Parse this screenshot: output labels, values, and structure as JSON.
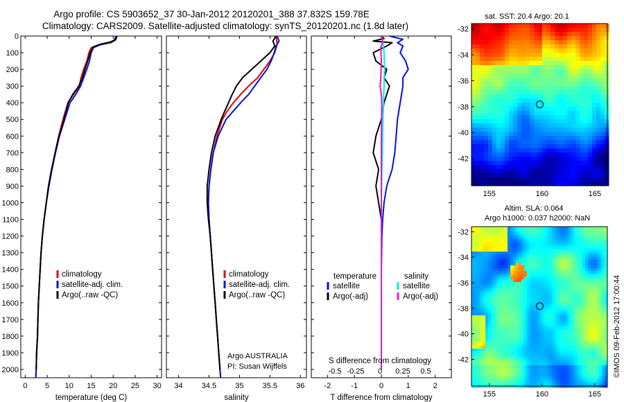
{
  "title_lines": [
    "Argo profile: CS 5903652_37 30-Jan-2012 20120201_388 37.832S 159.78E",
    "Climatology: CARS2009. Satellite-adjusted climatology: synTS_20120201.nc (1.8d later)"
  ],
  "colors": {
    "climatology": "#e00000",
    "satellite": "#0010e0",
    "argo": "#000000",
    "satellite_diff": "#00e8e8",
    "argo_diff": "#e020e0"
  },
  "chart_data": [
    {
      "type": "line",
      "xlabel": "temperature (deg C)",
      "xlim": [
        -1,
        31
      ],
      "xticks": [
        "0",
        "5",
        "10",
        "15",
        "20",
        "25",
        "30"
      ],
      "ylim": [
        0,
        2050
      ],
      "yticks": [
        "0",
        "100",
        "200",
        "300",
        "400",
        "500",
        "600",
        "700",
        "800",
        "900",
        "1000",
        "1100",
        "1200",
        "1300",
        "1400",
        "1500",
        "1600",
        "1700",
        "1800",
        "1900",
        "2000"
      ],
      "legend": [
        "climatology",
        "satellite-adj. clim.",
        "Argo(..raw -QC)"
      ],
      "series": [
        {
          "name": "climatology",
          "color": "climatology",
          "points": [
            [
              20.8,
              0
            ],
            [
              20.5,
              25
            ],
            [
              19.5,
              40
            ],
            [
              16.5,
              55
            ],
            [
              15,
              70
            ],
            [
              14.5,
              100
            ],
            [
              14,
              150
            ],
            [
              13.3,
              200
            ],
            [
              12.7,
              250
            ],
            [
              12.3,
              300
            ],
            [
              11,
              350
            ],
            [
              9.7,
              400
            ],
            [
              8.6,
              500
            ],
            [
              7.6,
              600
            ],
            [
              6.8,
              700
            ],
            [
              6,
              800
            ],
            [
              5.3,
              900
            ],
            [
              4.8,
              1000
            ],
            [
              4.3,
              1100
            ],
            [
              3.9,
              1200
            ],
            [
              3.6,
              1300
            ],
            [
              3.4,
              1400
            ],
            [
              3.2,
              1500
            ],
            [
              3,
              1600
            ],
            [
              2.9,
              1700
            ],
            [
              2.8,
              1800
            ],
            [
              2.6,
              1900
            ],
            [
              2.5,
              2000
            ],
            [
              2.4,
              2050
            ]
          ]
        },
        {
          "name": "satellite-adj. clim.",
          "color": "satellite",
          "points": [
            [
              20.6,
              0
            ],
            [
              20.3,
              25
            ],
            [
              19,
              40
            ],
            [
              16.8,
              55
            ],
            [
              15.5,
              70
            ],
            [
              15,
              100
            ],
            [
              14.6,
              150
            ],
            [
              14,
              200
            ],
            [
              13.3,
              250
            ],
            [
              12.6,
              300
            ],
            [
              11.5,
              350
            ],
            [
              10.2,
              400
            ],
            [
              9,
              500
            ],
            [
              7.8,
              600
            ],
            [
              6.9,
              700
            ],
            [
              6.1,
              800
            ],
            [
              5.4,
              900
            ],
            [
              4.8,
              1000
            ],
            [
              4.3,
              1100
            ],
            [
              3.9,
              1200
            ],
            [
              3.6,
              1300
            ],
            [
              3.4,
              1400
            ],
            [
              3.2,
              1500
            ],
            [
              3,
              1600
            ],
            [
              2.9,
              1700
            ],
            [
              2.8,
              1800
            ],
            [
              2.6,
              1900
            ],
            [
              2.5,
              2000
            ],
            [
              2.4,
              2050
            ]
          ]
        },
        {
          "name": "Argo(..raw -QC)",
          "color": "argo",
          "points": [
            [
              20.9,
              0
            ],
            [
              20.6,
              20
            ],
            [
              19.5,
              35
            ],
            [
              17,
              50
            ],
            [
              15.5,
              65
            ],
            [
              14.8,
              100
            ],
            [
              14.2,
              150
            ],
            [
              13.6,
              200
            ],
            [
              13,
              250
            ],
            [
              12.2,
              300
            ],
            [
              10.8,
              350
            ],
            [
              9.8,
              400
            ],
            [
              8.8,
              500
            ],
            [
              7.7,
              600
            ],
            [
              6.8,
              700
            ],
            [
              6,
              800
            ],
            [
              5.3,
              900
            ],
            [
              4.8,
              1000
            ],
            [
              4.3,
              1100
            ],
            [
              3.9,
              1200
            ],
            [
              3.6,
              1300
            ],
            [
              3.4,
              1400
            ],
            [
              3.2,
              1500
            ],
            [
              3,
              1600
            ],
            [
              2.9,
              1700
            ],
            [
              2.8,
              1800
            ],
            [
              2.6,
              1900
            ],
            [
              2.5,
              2000
            ]
          ]
        }
      ]
    },
    {
      "type": "line",
      "xlabel": "salinity",
      "xlim": [
        33.8,
        36.1
      ],
      "xticks": [
        "34",
        "34.5",
        "35",
        "35.5",
        "36"
      ],
      "ylim": [
        0,
        2050
      ],
      "legend": [
        "climatology",
        "satellite-adj. clim.",
        "Argo(..raw -QC)"
      ],
      "annotation": [
        "Argo AUSTRALIA",
        "PI: Susan Wijffels"
      ],
      "series": [
        {
          "name": "climatology",
          "color": "climatology",
          "points": [
            [
              35.6,
              0
            ],
            [
              35.62,
              50
            ],
            [
              35.58,
              100
            ],
            [
              35.5,
              150
            ],
            [
              35.4,
              200
            ],
            [
              35.3,
              250
            ],
            [
              35.15,
              300
            ],
            [
              35.02,
              350
            ],
            [
              34.9,
              400
            ],
            [
              34.8,
              450
            ],
            [
              34.72,
              500
            ],
            [
              34.63,
              600
            ],
            [
              34.57,
              700
            ],
            [
              34.53,
              800
            ],
            [
              34.5,
              900
            ],
            [
              34.49,
              1000
            ],
            [
              34.5,
              1100
            ],
            [
              34.52,
              1200
            ],
            [
              34.54,
              1300
            ],
            [
              34.56,
              1400
            ],
            [
              34.58,
              1500
            ],
            [
              34.6,
              1600
            ],
            [
              34.62,
              1700
            ],
            [
              34.64,
              1800
            ],
            [
              34.66,
              1900
            ],
            [
              34.68,
              2000
            ],
            [
              34.69,
              2050
            ]
          ]
        },
        {
          "name": "satellite-adj. clim.",
          "color": "satellite",
          "points": [
            [
              35.62,
              0
            ],
            [
              35.65,
              30
            ],
            [
              35.6,
              60
            ],
            [
              35.57,
              100
            ],
            [
              35.52,
              150
            ],
            [
              35.45,
              200
            ],
            [
              35.35,
              250
            ],
            [
              35.25,
              300
            ],
            [
              35.15,
              350
            ],
            [
              35.02,
              400
            ],
            [
              34.9,
              450
            ],
            [
              34.78,
              500
            ],
            [
              34.65,
              600
            ],
            [
              34.57,
              700
            ],
            [
              34.53,
              800
            ],
            [
              34.5,
              900
            ],
            [
              34.49,
              1000
            ],
            [
              34.5,
              1100
            ],
            [
              34.52,
              1200
            ],
            [
              34.54,
              1300
            ],
            [
              34.56,
              1400
            ],
            [
              34.58,
              1500
            ],
            [
              34.6,
              1600
            ],
            [
              34.62,
              1700
            ],
            [
              34.64,
              1800
            ],
            [
              34.66,
              1900
            ],
            [
              34.68,
              2000
            ],
            [
              34.69,
              2050
            ]
          ]
        },
        {
          "name": "Argo(..raw -QC)",
          "color": "argo",
          "points": [
            [
              35.6,
              0
            ],
            [
              35.55,
              30
            ],
            [
              35.58,
              60
            ],
            [
              35.5,
              100
            ],
            [
              35.35,
              150
            ],
            [
              35.2,
              200
            ],
            [
              35.05,
              250
            ],
            [
              34.95,
              300
            ],
            [
              34.88,
              350
            ],
            [
              34.82,
              400
            ],
            [
              34.76,
              450
            ],
            [
              34.7,
              500
            ],
            [
              34.6,
              600
            ],
            [
              34.54,
              700
            ],
            [
              34.5,
              800
            ],
            [
              34.47,
              900
            ],
            [
              34.47,
              1000
            ],
            [
              34.49,
              1100
            ],
            [
              34.52,
              1200
            ],
            [
              34.54,
              1300
            ],
            [
              34.56,
              1400
            ],
            [
              34.58,
              1500
            ],
            [
              34.6,
              1600
            ],
            [
              34.62,
              1700
            ],
            [
              34.64,
              1800
            ],
            [
              34.66,
              1900
            ],
            [
              34.68,
              2000
            ]
          ]
        }
      ]
    },
    {
      "type": "line",
      "title": "S difference from climatology",
      "xlabel": "T difference from climatology",
      "xlim": [
        -2.6,
        2.6
      ],
      "xticks": [
        "-2",
        "-1",
        "0",
        "1",
        "2"
      ],
      "sticks": [
        "-0.5",
        "-0.25",
        "0",
        "0.25",
        "0.5"
      ],
      "ylim": [
        0,
        2050
      ],
      "legend_temperature": {
        "heading": "temperature",
        "items": [
          "satellite",
          "Argo(-adj)"
        ]
      },
      "legend_salinity": {
        "heading": "salinity",
        "items": [
          "satellite",
          "Argo(-adj)"
        ]
      },
      "series": [
        {
          "name": "satellite",
          "color": "satellite",
          "points": [
            [
              0.3,
              0
            ],
            [
              0.8,
              20
            ],
            [
              0.6,
              40
            ],
            [
              0.8,
              60
            ],
            [
              0.7,
              100
            ],
            [
              0.9,
              150
            ],
            [
              1,
              200
            ],
            [
              0.8,
              250
            ],
            [
              0.8,
              300
            ],
            [
              0.7,
              400
            ],
            [
              0.6,
              500
            ],
            [
              0.55,
              600
            ],
            [
              0.5,
              700
            ],
            [
              0.4,
              800
            ],
            [
              0.2,
              900
            ],
            [
              0.1,
              1000
            ],
            [
              0.05,
              1100
            ],
            [
              0.02,
              1200
            ],
            [
              0,
              1400
            ],
            [
              0,
              2000
            ]
          ]
        },
        {
          "name": "Argo(-adj)",
          "color": "argo",
          "points": [
            [
              0,
              0
            ],
            [
              0.1,
              15
            ],
            [
              -0.3,
              30
            ],
            [
              0.4,
              40
            ],
            [
              0.2,
              60
            ],
            [
              -0.3,
              100
            ],
            [
              -0.2,
              150
            ],
            [
              0.2,
              200
            ],
            [
              0.1,
              250
            ],
            [
              0.3,
              300
            ],
            [
              0.1,
              400
            ],
            [
              0,
              500
            ],
            [
              -0.2,
              600
            ],
            [
              -0.3,
              700
            ],
            [
              -0.1,
              800
            ],
            [
              -0.2,
              900
            ],
            [
              -0.1,
              1000
            ],
            [
              0,
              1100
            ],
            [
              0,
              1400
            ],
            [
              0,
              2000
            ]
          ]
        },
        {
          "name": "satellite",
          "color": "satellite_diff",
          "points": [
            [
              0.02,
              0
            ],
            [
              0.08,
              60
            ],
            [
              0.1,
              100
            ],
            [
              0.12,
              200
            ],
            [
              0.1,
              300
            ],
            [
              0.08,
              400
            ],
            [
              0.06,
              500
            ],
            [
              0.05,
              600
            ],
            [
              0.04,
              700
            ],
            [
              0.02,
              800
            ],
            [
              0.01,
              900
            ],
            [
              0,
              1000
            ],
            [
              0,
              2000
            ]
          ]
        },
        {
          "name": "Argo(-adj)",
          "color": "argo_diff",
          "points": [
            [
              0.02,
              0
            ],
            [
              0.05,
              30
            ],
            [
              -0.02,
              70
            ],
            [
              0,
              150
            ],
            [
              -0.02,
              250
            ],
            [
              -0.05,
              300
            ],
            [
              0.0,
              350
            ],
            [
              0.02,
              400
            ],
            [
              0.01,
              500
            ],
            [
              0,
              600
            ],
            [
              0,
              2000
            ]
          ]
        }
      ]
    },
    {
      "type": "heatmap",
      "title": "sat. SST: 20.4  Argo: 20.1",
      "xticks": [
        "155",
        "160",
        "165"
      ],
      "yticks": [
        "-32",
        "-34",
        "-36",
        "-38",
        "-40",
        "-42"
      ],
      "marker": [
        159.78,
        -37.83
      ]
    },
    {
      "type": "heatmap",
      "title_lines": [
        "Altim. SLA: 0.064",
        "Argo h1000: 0.037 h2000: NaN"
      ],
      "xticks": [
        "155",
        "160",
        "165"
      ],
      "yticks": [
        "-32",
        "-34",
        "-36",
        "-38",
        "-40",
        "-42"
      ],
      "marker": [
        159.78,
        -37.83
      ]
    }
  ],
  "footer": "©IMOS 09-Feb-2012 17:00:44"
}
